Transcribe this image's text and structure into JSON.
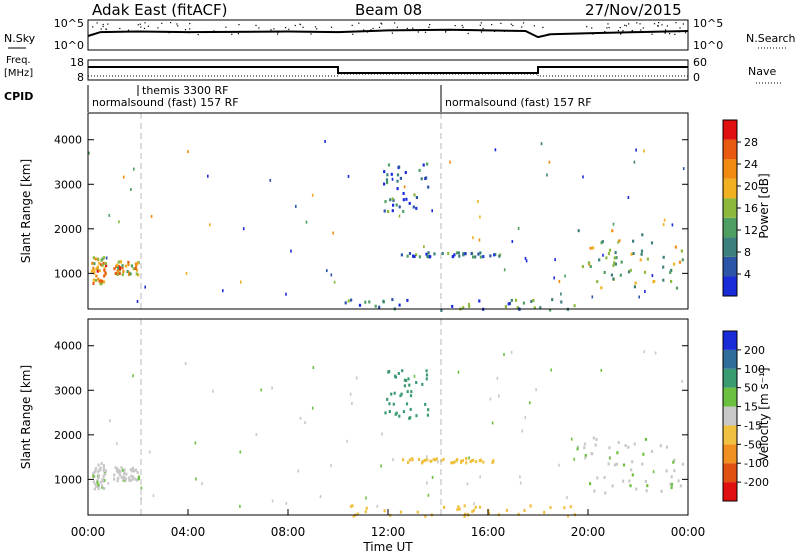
{
  "header": {
    "station": "Adak East (fitACF)",
    "beam": "Beam 08",
    "date": "27/Nov/2015"
  },
  "strip_labels": {
    "nsky": "N.Sky",
    "nsearch": "N.Search",
    "freq_line1": "Freq.",
    "freq_line2": "[MHz]",
    "nave": "Nave",
    "cpid": "CPID",
    "nsky_ticks": [
      "10^5",
      "10^0"
    ],
    "nsearch_ticks": [
      "10^5",
      "10^0"
    ],
    "freq_ticks": [
      "18",
      "8"
    ],
    "nave_ticks": [
      "60",
      "0"
    ]
  },
  "cpid_segments": [
    {
      "label": "normalsound (fast) 157 RF",
      "start_hour": 0
    },
    {
      "label": "themis 3300 RF",
      "start_hour": 2
    },
    {
      "label": "normalsound (fast) 157 RF",
      "start_hour": 14
    }
  ],
  "axis": {
    "xlabel": "Time UT",
    "x_ticks": [
      "00:00",
      "04:00",
      "08:00",
      "12:00",
      "16:00",
      "20:00",
      "00:00"
    ],
    "ylabel": "Slant Range [km]",
    "y_ticks": [
      "1000",
      "2000",
      "3000",
      "4000"
    ]
  },
  "colorbars": {
    "power": {
      "label": "Power [dB]",
      "ticks": [
        "4",
        "8",
        "12",
        "16",
        "20",
        "24",
        "28"
      ],
      "colors": [
        "#1a2bd8",
        "#2c55a8",
        "#3d7f7a",
        "#4f9f62",
        "#8cb83c",
        "#f0b020",
        "#f08a10",
        "#e85a10",
        "#e01010"
      ]
    },
    "velocity": {
      "label": "Velocity [m s⁻¹]",
      "ticks": [
        "200",
        "100",
        "50",
        "15",
        "-15",
        "-50",
        "-100",
        "-200"
      ],
      "colors": [
        "#1a2bd8",
        "#2f6e9a",
        "#3a9a70",
        "#6cc040",
        "#c8c8c8",
        "#f0c040",
        "#f09020",
        "#e05010",
        "#e01010"
      ]
    }
  },
  "chart_data": [
    {
      "type": "line",
      "title": "N.Sky / N.Search",
      "x_range_hours": [
        0,
        24
      ],
      "series": [
        {
          "name": "N.Sky",
          "x": [
            0,
            0.5,
            2,
            4,
            8,
            10,
            12,
            14.5,
            17.5,
            18,
            18.5,
            20,
            22,
            24
          ],
          "y": [
            2.5,
            3.2,
            3.3,
            3.2,
            3.3,
            3.2,
            3.5,
            3.6,
            3.4,
            2.3,
            2.8,
            3.0,
            3.2,
            3.4
          ]
        }
      ]
    },
    {
      "type": "line",
      "title": "Freq / Nave",
      "x_range_hours": [
        0,
        24
      ],
      "series": [
        {
          "name": "Freq.",
          "x": [
            0,
            10,
            10,
            18,
            18,
            24
          ],
          "y": [
            14.5,
            14.5,
            11.5,
            11.5,
            14.5,
            14.5
          ]
        },
        {
          "name": "Nave",
          "x": [
            0,
            10,
            10,
            18,
            18,
            24
          ],
          "y": [
            12,
            12,
            18,
            18,
            12,
            12
          ]
        }
      ]
    },
    {
      "type": "heatmap",
      "title": "Power [dB]",
      "xlim": [
        0,
        24
      ],
      "ylim": [
        200,
        4600
      ],
      "regions": [
        {
          "t": [
            0.1,
            0.7
          ],
          "r": [
            800,
            1400
          ],
          "value": 22
        },
        {
          "t": [
            1.0,
            2.0
          ],
          "r": [
            1000,
            1300
          ],
          "value": 20
        },
        {
          "t": [
            10.2,
            19.5
          ],
          "r": [
            200,
            450
          ],
          "value": 10
        },
        {
          "t": [
            12.5,
            16.5
          ],
          "r": [
            1400,
            1500
          ],
          "value": 8
        },
        {
          "t": [
            11.8,
            13.6
          ],
          "r": [
            2400,
            3500
          ],
          "value": 8
        },
        {
          "t": [
            19.5,
            23.8
          ],
          "r": [
            700,
            2000
          ],
          "value": 16
        }
      ]
    },
    {
      "type": "heatmap",
      "title": "Velocity [m s-1]",
      "xlim": [
        0,
        24
      ],
      "ylim": [
        200,
        4600
      ],
      "regions": [
        {
          "t": [
            0.1,
            0.7
          ],
          "r": [
            800,
            1400
          ],
          "value": 0
        },
        {
          "t": [
            1.0,
            2.0
          ],
          "r": [
            1000,
            1300
          ],
          "value": 0
        },
        {
          "t": [
            10.2,
            19.5
          ],
          "r": [
            200,
            450
          ],
          "value": -30
        },
        {
          "t": [
            12.5,
            16.5
          ],
          "r": [
            1400,
            1500
          ],
          "value": -25
        },
        {
          "t": [
            11.8,
            13.6
          ],
          "r": [
            2400,
            3500
          ],
          "value": 30
        },
        {
          "t": [
            19.5,
            23.8
          ],
          "r": [
            700,
            2000
          ],
          "value": 0
        }
      ]
    }
  ]
}
